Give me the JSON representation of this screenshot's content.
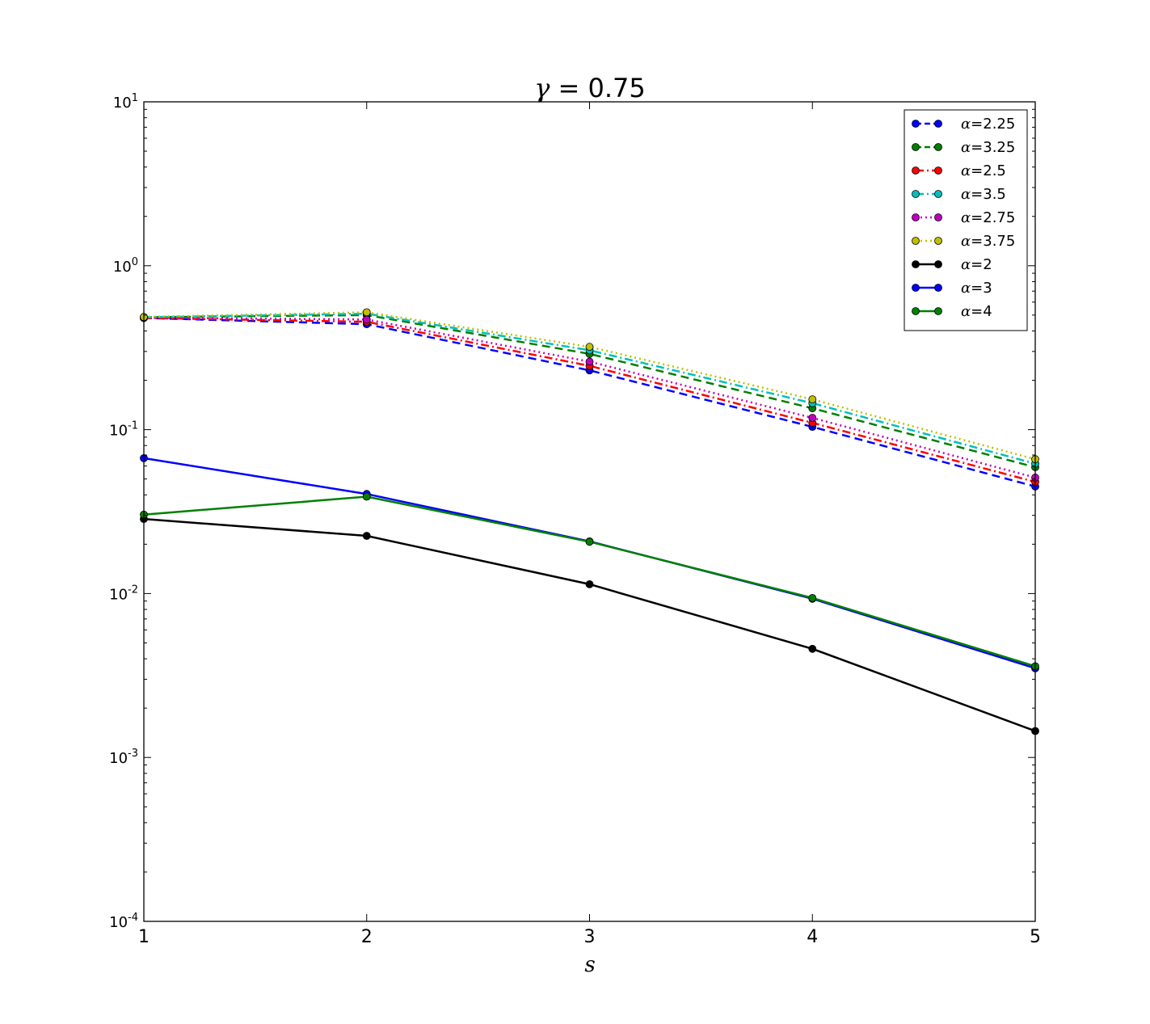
{
  "chart_data": {
    "type": "line",
    "title": {
      "symbol": "γ",
      "text": " = 0.75"
    },
    "xlabel": "s",
    "ylabel": "",
    "x": [
      1,
      2,
      3,
      4,
      5
    ],
    "xlim": [
      1,
      5
    ],
    "ylim": [
      0.0001,
      10
    ],
    "yscale": "log",
    "grid": false,
    "legend_position": "top-right",
    "x_ticks": [
      "1",
      "2",
      "3",
      "4",
      "5"
    ],
    "y_ticks": [
      {
        "value": 10,
        "base": "10",
        "exp": "1"
      },
      {
        "value": 1,
        "base": "10",
        "exp": "0"
      },
      {
        "value": 0.1,
        "base": "10",
        "exp": "-1"
      },
      {
        "value": 0.01,
        "base": "10",
        "exp": "-2"
      },
      {
        "value": 0.001,
        "base": "10",
        "exp": "-3"
      },
      {
        "value": 0.0001,
        "base": "10",
        "exp": "-4"
      }
    ],
    "series": [
      {
        "symbol": "α",
        "name": "=2.25",
        "color": "#0000ff",
        "style": "dashed",
        "values": [
          0.48,
          0.44,
          0.23,
          0.104,
          0.045
        ]
      },
      {
        "symbol": "α",
        "name": "=3.25",
        "color": "#008000",
        "style": "dashed",
        "values": [
          0.485,
          0.5,
          0.29,
          0.135,
          0.059
        ]
      },
      {
        "symbol": "α",
        "name": "=2.5",
        "color": "#ff0000",
        "style": "dashdot",
        "values": [
          0.48,
          0.455,
          0.245,
          0.11,
          0.048
        ]
      },
      {
        "symbol": "α",
        "name": "=3.5",
        "color": "#00bfbf",
        "style": "dashdot",
        "values": [
          0.485,
          0.51,
          0.305,
          0.145,
          0.062
        ]
      },
      {
        "symbol": "α",
        "name": "=2.75",
        "color": "#bf00bf",
        "style": "dotted",
        "values": [
          0.482,
          0.47,
          0.26,
          0.118,
          0.051
        ]
      },
      {
        "symbol": "α",
        "name": "=3.75",
        "color": "#bfbf00",
        "style": "dotted",
        "values": [
          0.487,
          0.52,
          0.32,
          0.153,
          0.066
        ]
      },
      {
        "symbol": "α",
        "name": "=2",
        "color": "#000000",
        "style": "solid",
        "values": [
          0.0285,
          0.0225,
          0.0114,
          0.0046,
          0.00145
        ]
      },
      {
        "symbol": "α",
        "name": "=3",
        "color": "#0000ff",
        "style": "solid",
        "values": [
          0.067,
          0.0405,
          0.0208,
          0.0093,
          0.0035
        ]
      },
      {
        "symbol": "α",
        "name": "=4",
        "color": "#008000",
        "style": "solid",
        "values": [
          0.0303,
          0.039,
          0.0207,
          0.0094,
          0.0036
        ]
      }
    ]
  }
}
